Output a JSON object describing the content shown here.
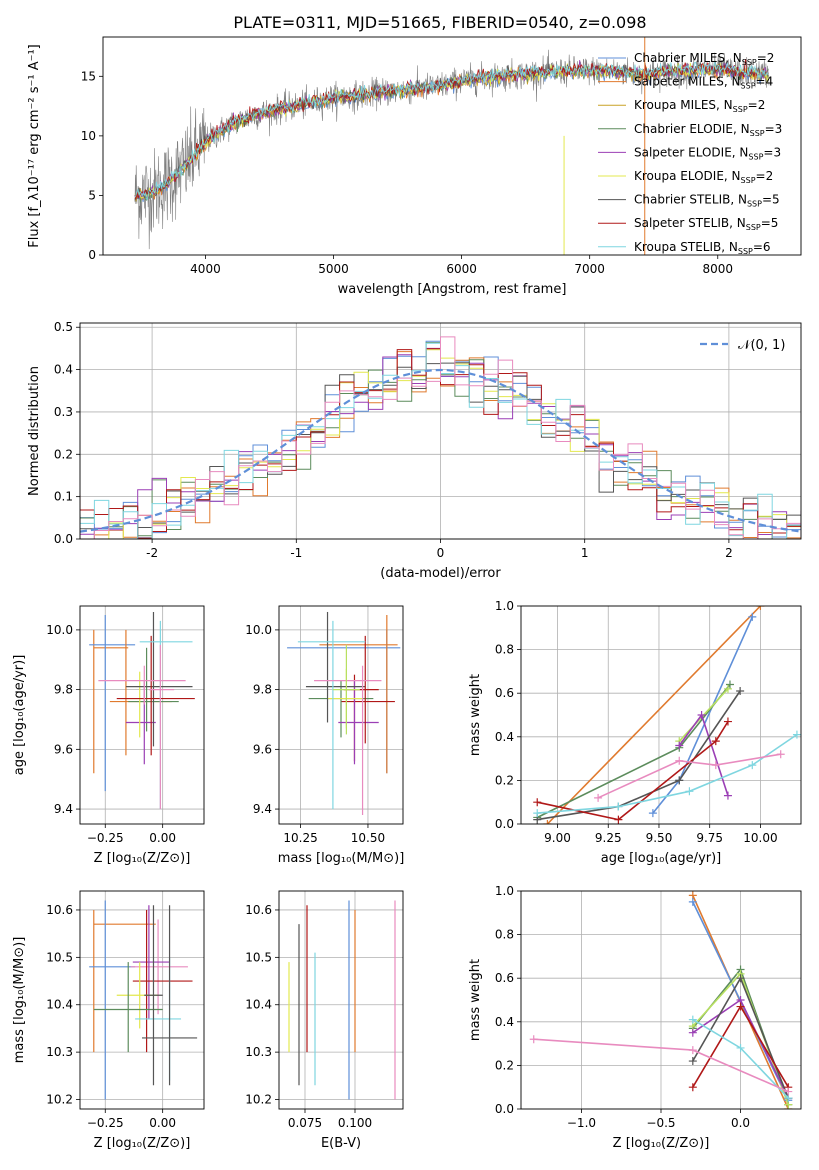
{
  "figure": {
    "title": "PLATE=0311, MJD=51665, FIBERID=0540, z=0.098"
  },
  "colors": {
    "chabrier_miles": "#5f8fd8",
    "salpeter_miles": "#e07a2e",
    "kroupa_miles": "#c9a227",
    "chabrier_elodie": "#5c8c5c",
    "salpeter_elodie": "#9b3fb5",
    "kroupa_elodie": "#e3e84f",
    "chabrier_stelib": "#555555",
    "salpeter_stelib": "#b01818",
    "kroupa_stelib": "#7fd6e0",
    "data": "#7f7f7f",
    "pink": "#e88bbf",
    "green": "#b8e060",
    "gaussian": "#5f8fd8"
  },
  "chart_data": [
    {
      "type": "line",
      "panel": "spectrum",
      "xlabel": "wavelength [Angstrom, rest frame]",
      "ylabel": "Flux [f_λ10⁻¹⁷ erg cm⁻² s⁻¹ A⁻¹]",
      "xlim": [
        3200,
        8650
      ],
      "ylim": [
        0,
        18.3
      ],
      "xticks": [
        4000,
        5000,
        6000,
        7000,
        8000
      ],
      "yticks": [
        0,
        5,
        10,
        15
      ],
      "legend_position": "top-right",
      "legend": [
        {
          "label": "Chabrier MILES, N_SSP=2",
          "color": "#5f8fd8"
        },
        {
          "label": "Salpeter MILES, N_SSP=4",
          "color": "#e07a2e"
        },
        {
          "label": "Kroupa MILES, N_SSP=2",
          "color": "#c9a227"
        },
        {
          "label": "Chabrier ELODIE, N_SSP=3",
          "color": "#5c8c5c"
        },
        {
          "label": "Salpeter ELODIE, N_SSP=3",
          "color": "#9b3fb5"
        },
        {
          "label": "Kroupa ELODIE, N_SSP=2",
          "color": "#e3e84f"
        },
        {
          "label": "Chabrier STELIB, N_SSP=5",
          "color": "#555555"
        },
        {
          "label": "Salpeter STELIB, N_SSP=5",
          "color": "#b01818"
        },
        {
          "label": "Kroupa STELIB, N_SSP=6",
          "color": "#7fd6e0"
        }
      ],
      "continuum": {
        "x": [
          3450,
          3600,
          3700,
          3850,
          4000,
          4200,
          4400,
          4600,
          4800,
          5000,
          5200,
          5400,
          5600,
          5800,
          6000,
          6200,
          6400,
          6600,
          6800,
          7000,
          7200,
          7400,
          7600,
          7800,
          8000,
          8200,
          8400
        ],
        "y": [
          5.0,
          5.3,
          6.0,
          7.5,
          9.5,
          11.0,
          11.8,
          12.3,
          12.7,
          13.2,
          13.4,
          13.7,
          13.9,
          14.1,
          14.6,
          14.9,
          15.1,
          15.3,
          15.4,
          15.5,
          15.4,
          15.2,
          15.4,
          15.5,
          15.6,
          15.3,
          15.2
        ]
      }
    },
    {
      "type": "bar",
      "panel": "residual-histogram",
      "xlabel": "(data-model)/error",
      "ylabel": "Normed distribution",
      "xlim": [
        -2.5,
        2.5
      ],
      "ylim": [
        0,
        0.51
      ],
      "xticks": [
        -2,
        -1,
        0,
        1,
        2
      ],
      "yticks": [
        0.0,
        0.1,
        0.2,
        0.3,
        0.4,
        0.5
      ],
      "legend": "𝒩(0, 1)",
      "legend_position": "top-right",
      "bin_width": 0.1,
      "gaussian": {
        "mean": 0,
        "sigma": 1
      }
    },
    {
      "type": "scatter",
      "panel": "age-vs-metallicity",
      "xlabel": "Z [log₁₀(Z/Z⊙)]",
      "ylabel": "age  [log₁₀(age/yr)]",
      "xlim": [
        -0.36,
        0.18
      ],
      "ylim": [
        9.35,
        10.08
      ],
      "xticks": [
        -0.25,
        0.0
      ],
      "xticklabels": [
        "−0.25",
        "0.00"
      ],
      "yticks": [
        9.4,
        9.6,
        9.8,
        10.0
      ],
      "points": [
        {
          "x": -0.3,
          "y": 9.94,
          "xerr": [
            0.0,
            0.15
          ],
          "yerr": [
            0.42,
            0.06
          ],
          "color": "#e07a2e"
        },
        {
          "x": -0.25,
          "y": 9.95,
          "xerr": [
            0.07,
            0.13
          ],
          "yerr": [
            0.49,
            0.1
          ],
          "color": "#5f8fd8"
        },
        {
          "x": -0.16,
          "y": 9.76,
          "xerr": [
            0.07,
            0.2
          ],
          "yerr": [
            0.18,
            0.24
          ],
          "color": "#e07a2e"
        },
        {
          "x": -0.07,
          "y": 9.76,
          "xerr": [
            0.08,
            0.14
          ],
          "yerr": [
            0.1,
            0.18
          ],
          "color": "#5c8c5c"
        },
        {
          "x": -0.08,
          "y": 9.69,
          "xerr": [
            0.08,
            0.05
          ],
          "yerr": [
            0.14,
            0.14
          ],
          "color": "#9b3fb5"
        },
        {
          "x": -0.1,
          "y": 9.77,
          "xerr": [
            0.06,
            0.06
          ],
          "yerr": [
            0.13,
            0.09
          ],
          "color": "#e3e84f"
        },
        {
          "x": -0.04,
          "y": 9.81,
          "xerr": [
            0.12,
            0.17
          ],
          "yerr": [
            0.2,
            0.25
          ],
          "color": "#555555"
        },
        {
          "x": -0.05,
          "y": 9.77,
          "xerr": [
            0.15,
            0.19
          ],
          "yerr": [
            0.19,
            0.21
          ],
          "color": "#b01818"
        },
        {
          "x": -0.01,
          "y": 9.96,
          "xerr": [
            0.09,
            0.14
          ],
          "yerr": [
            0.56,
            0.07
          ],
          "color": "#7fd6e0"
        },
        {
          "x": -0.08,
          "y": 9.83,
          "xerr": [
            0.2,
            0.18
          ],
          "yerr": [
            0.08,
            0.05
          ],
          "color": "#e88bbf"
        },
        {
          "x": -0.01,
          "y": 9.8,
          "xerr": [
            0.05,
            0.06
          ],
          "yerr": [
            0.4,
            0.15
          ],
          "color": "#e88bbf"
        }
      ]
    },
    {
      "type": "scatter",
      "panel": "age-vs-mass",
      "xlabel": "mass [log₁₀(M/M⊙)]",
      "ylabel": "",
      "xlim": [
        10.17,
        10.63
      ],
      "ylim": [
        9.35,
        10.08
      ],
      "xticks": [
        10.25,
        10.5
      ],
      "xticklabels": [
        "10.25",
        "10.50"
      ],
      "yticks": [
        9.4,
        9.6,
        9.8,
        10.0
      ],
      "points": [
        {
          "x": 10.57,
          "y": 9.94,
          "xerr": [
            0.37,
            0.05
          ],
          "yerr": [
            0.42,
            0.06
          ],
          "color": "#5f8fd8"
        },
        {
          "x": 10.57,
          "y": 9.95,
          "xerr": [
            0.25,
            0.04
          ],
          "yerr": [
            0.43,
            0.1
          ],
          "color": "#e07a2e"
        },
        {
          "x": 10.45,
          "y": 9.76,
          "xerr": [
            0.05,
            0.15
          ],
          "yerr": [
            0.2,
            0.09
          ],
          "color": "#b01818"
        },
        {
          "x": 10.4,
          "y": 9.77,
          "xerr": [
            0.12,
            0.12
          ],
          "yerr": [
            0.13,
            0.06
          ],
          "color": "#5c8c5c"
        },
        {
          "x": 10.45,
          "y": 9.69,
          "xerr": [
            0.06,
            0.09
          ],
          "yerr": [
            0.14,
            0.14
          ],
          "color": "#9b3fb5"
        },
        {
          "x": 10.42,
          "y": 9.77,
          "xerr": [
            0.07,
            0.06
          ],
          "yerr": [
            0.1,
            0.1
          ],
          "color": "#e3e84f"
        },
        {
          "x": 10.35,
          "y": 9.81,
          "xerr": [
            0.08,
            0.14
          ],
          "yerr": [
            0.12,
            0.25
          ],
          "color": "#555555"
        },
        {
          "x": 10.49,
          "y": 9.8,
          "xerr": [
            0.08,
            0.05
          ],
          "yerr": [
            0.18,
            0.18
          ],
          "color": "#b01818"
        },
        {
          "x": 10.37,
          "y": 9.96,
          "xerr": [
            0.13,
            0.12
          ],
          "yerr": [
            0.56,
            0.07
          ],
          "color": "#7fd6e0"
        },
        {
          "x": 10.48,
          "y": 9.83,
          "xerr": [
            0.18,
            0.07
          ],
          "yerr": [
            0.45,
            0.05
          ],
          "color": "#e88bbf"
        },
        {
          "x": 10.42,
          "y": 9.8,
          "xerr": [
            0.05,
            0.05
          ],
          "yerr": [
            0.15,
            0.15
          ],
          "color": "#b8e060"
        }
      ]
    },
    {
      "type": "line",
      "panel": "weight-vs-age",
      "xlabel": "age  [log₁₀(age/yr)]",
      "ylabel": "mass weight",
      "xlim": [
        8.82,
        10.2
      ],
      "ylim": [
        0,
        1.0
      ],
      "xticks": [
        9.0,
        9.25,
        9.5,
        9.75,
        10.0
      ],
      "xticklabels": [
        "9.00",
        "9.25",
        "9.50",
        "9.75",
        "10.00"
      ],
      "yticks": [
        0.0,
        0.2,
        0.4,
        0.6,
        0.8,
        1.0
      ],
      "series": [
        {
          "color": "#e07a2e",
          "x": [
            8.95,
            10.0
          ],
          "y": [
            0.0,
            1.0
          ]
        },
        {
          "color": "#5f8fd8",
          "x": [
            9.47,
            9.6,
            9.96
          ],
          "y": [
            0.05,
            0.2,
            0.95
          ]
        },
        {
          "color": "#5c8c5c",
          "x": [
            8.9,
            9.6,
            9.85
          ],
          "y": [
            0.03,
            0.35,
            0.64
          ]
        },
        {
          "color": "#b8e060",
          "x": [
            9.6,
            9.84
          ],
          "y": [
            0.38,
            0.62
          ]
        },
        {
          "color": "#9b3fb5",
          "x": [
            9.6,
            9.71,
            9.84
          ],
          "y": [
            0.36,
            0.5,
            0.13
          ]
        },
        {
          "color": "#555555",
          "x": [
            8.9,
            9.3,
            9.6,
            9.9
          ],
          "y": [
            0.02,
            0.08,
            0.2,
            0.61
          ]
        },
        {
          "color": "#b01818",
          "x": [
            8.9,
            9.3,
            9.78,
            9.84
          ],
          "y": [
            0.1,
            0.02,
            0.38,
            0.47
          ]
        },
        {
          "color": "#7fd6e0",
          "x": [
            8.9,
            9.3,
            9.65,
            9.96,
            10.18
          ],
          "y": [
            0.05,
            0.08,
            0.15,
            0.27,
            0.41
          ]
        },
        {
          "color": "#e88bbf",
          "x": [
            9.2,
            9.6,
            9.78,
            10.1
          ],
          "y": [
            0.12,
            0.29,
            0.27,
            0.32
          ]
        }
      ]
    },
    {
      "type": "scatter",
      "panel": "mass-vs-metallicity",
      "xlabel": "Z [log₁₀(Z/Z⊙)]",
      "ylabel": "mass [log₁₀(M/M⊙)]",
      "xlim": [
        -0.36,
        0.18
      ],
      "ylim": [
        10.18,
        10.64
      ],
      "xticks": [
        -0.25,
        0.0
      ],
      "xticklabels": [
        "−0.25",
        "0.00"
      ],
      "yticks": [
        10.2,
        10.3,
        10.4,
        10.5,
        10.6
      ],
      "points": [
        {
          "x": -0.3,
          "y": 10.57,
          "xerr": [
            0.0,
            0.27
          ],
          "yerr": [
            0.27,
            0.03
          ],
          "color": "#e07a2e"
        },
        {
          "x": -0.25,
          "y": 10.48,
          "xerr": [
            0.07,
            0.13
          ],
          "yerr": [
            0.28,
            0.14
          ],
          "color": "#5f8fd8"
        },
        {
          "x": -0.02,
          "y": 10.48,
          "xerr": [
            0.12,
            0.13
          ],
          "yerr": [
            0.1,
            0.1
          ],
          "color": "#e88bbf"
        },
        {
          "x": -0.06,
          "y": 10.49,
          "xerr": [
            0.07,
            0.09
          ],
          "yerr": [
            0.12,
            0.12
          ],
          "color": "#9b3fb5"
        },
        {
          "x": -0.07,
          "y": 10.45,
          "xerr": [
            0.06,
            0.2
          ],
          "yerr": [
            0.15,
            0.15
          ],
          "color": "#b01818"
        },
        {
          "x": -0.1,
          "y": 10.42,
          "xerr": [
            0.1,
            0.08
          ],
          "yerr": [
            0.07,
            0.07
          ],
          "color": "#e3e84f"
        },
        {
          "x": -0.15,
          "y": 10.39,
          "xerr": [
            0.15,
            0.15
          ],
          "yerr": [
            0.09,
            0.1
          ],
          "color": "#5c8c5c"
        },
        {
          "x": 0.03,
          "y": 10.37,
          "xerr": [
            0.15,
            0.05
          ],
          "yerr": [
            0.13,
            0.13
          ],
          "color": "#7fd6e0"
        },
        {
          "x": 0.03,
          "y": 10.33,
          "xerr": [
            0.12,
            0.12
          ],
          "yerr": [
            0.1,
            0.28
          ],
          "color": "#555555"
        },
        {
          "x": -0.04,
          "y": 10.42,
          "xerr": [
            0.04,
            0.04
          ],
          "yerr": [
            0.19,
            0.19
          ],
          "color": "#555555"
        }
      ]
    },
    {
      "type": "scatter",
      "panel": "mass-vs-extinction",
      "xlabel": "E(B-V)",
      "ylabel": "",
      "xlim": [
        0.062,
        0.124
      ],
      "ylim": [
        10.18,
        10.64
      ],
      "xticks": [
        0.075,
        0.1
      ],
      "xticklabels": [
        "0.075",
        "0.100"
      ],
      "yticks": [
        10.2,
        10.3,
        10.4,
        10.5,
        10.6
      ],
      "points": [
        {
          "x": 0.067,
          "y": 10.42,
          "yerr": [
            0.12,
            0.07
          ],
          "color": "#e3e84f"
        },
        {
          "x": 0.072,
          "y": 10.41,
          "yerr": [
            0.18,
            0.16
          ],
          "color": "#555555"
        },
        {
          "x": 0.076,
          "y": 10.46,
          "yerr": [
            0.16,
            0.15
          ],
          "color": "#b01818"
        },
        {
          "x": 0.08,
          "y": 10.37,
          "yerr": [
            0.14,
            0.14
          ],
          "color": "#7fd6e0"
        },
        {
          "x": 0.097,
          "y": 10.41,
          "yerr": [
            0.21,
            0.21
          ],
          "color": "#5f8fd8"
        },
        {
          "x": 0.1,
          "y": 10.45,
          "yerr": [
            0.15,
            0.15
          ],
          "color": "#e07a2e"
        },
        {
          "x": 0.12,
          "y": 10.41,
          "yerr": [
            0.21,
            0.21
          ],
          "color": "#e88bbf"
        }
      ]
    },
    {
      "type": "line",
      "panel": "weight-vs-metallicity",
      "xlabel": "Z [log₁₀(Z/Z⊙)]",
      "ylabel": "mass weight",
      "xlim": [
        -1.38,
        0.38
      ],
      "ylim": [
        0,
        1.0
      ],
      "xticks": [
        -1.0,
        -0.5,
        0.0
      ],
      "xticklabels": [
        "−1.0",
        "−0.5",
        "0.0"
      ],
      "yticks": [
        0.0,
        0.2,
        0.4,
        0.6,
        0.8,
        1.0
      ],
      "series": [
        {
          "color": "#e07a2e",
          "x": [
            -0.3,
            0.3
          ],
          "y": [
            0.98,
            0.0
          ]
        },
        {
          "color": "#5f8fd8",
          "x": [
            -0.3,
            0.3
          ],
          "y": [
            0.95,
            0.04
          ]
        },
        {
          "color": "#5c8c5c",
          "x": [
            -0.3,
            0.0,
            0.3
          ],
          "y": [
            0.37,
            0.64,
            0.02
          ]
        },
        {
          "color": "#b8e060",
          "x": [
            -0.3,
            0.0,
            0.3
          ],
          "y": [
            0.38,
            0.62,
            0.02
          ]
        },
        {
          "color": "#9b3fb5",
          "x": [
            -0.3,
            0.0,
            0.3
          ],
          "y": [
            0.35,
            0.5,
            0.05
          ]
        },
        {
          "color": "#555555",
          "x": [
            -0.3,
            0.0,
            0.3
          ],
          "y": [
            0.22,
            0.6,
            0.05
          ]
        },
        {
          "color": "#b01818",
          "x": [
            -0.3,
            0.0,
            0.3
          ],
          "y": [
            0.1,
            0.47,
            0.1
          ]
        },
        {
          "color": "#7fd6e0",
          "x": [
            -0.3,
            0.0,
            0.3
          ],
          "y": [
            0.41,
            0.28,
            0.05
          ]
        },
        {
          "color": "#e88bbf",
          "x": [
            -1.3,
            -0.3,
            0.3
          ],
          "y": [
            0.32,
            0.27,
            0.08
          ]
        }
      ]
    }
  ]
}
